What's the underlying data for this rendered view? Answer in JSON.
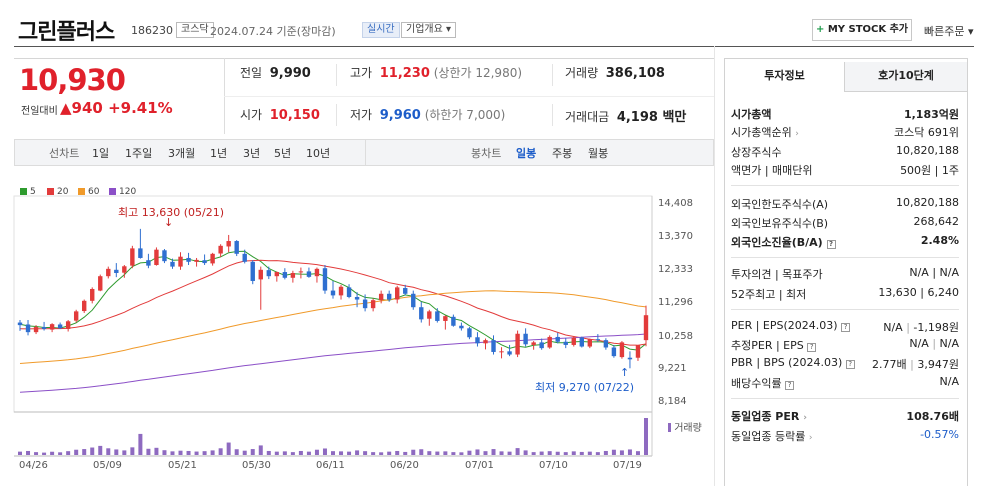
{
  "header": {
    "name": "그린플러스",
    "code": "186230",
    "market_tag": "코스닥",
    "date": "2024.07.24",
    "date_suffix": "기준(장마감)",
    "realtime_tag": "실시간",
    "company_tag": "기업개요",
    "mystock_label": "MY STOCK 추가",
    "quick_order": "빠른주문"
  },
  "price": {
    "current": "10,930",
    "change_label": "전일대비",
    "change": "▲940",
    "change_pct": "+9.41%"
  },
  "quote": {
    "prev_label": "전일",
    "prev": "9,990",
    "high_label": "고가",
    "high": "11,230",
    "upper_limit": "(상한가 12,980)",
    "volume_label": "거래량",
    "volume": "386,108",
    "open_label": "시가",
    "open": "10,150",
    "low_label": "저가",
    "low": "9,960",
    "lower_limit": "(하한가 7,000)",
    "amount_label": "거래대금",
    "amount": "4,198 백만"
  },
  "period_tabs": {
    "line_label": "선차트",
    "items": [
      "1일",
      "1주일",
      "3개월",
      "1년",
      "3년",
      "5년",
      "10년"
    ],
    "candle_label": "봉차트",
    "candle_items": [
      "일봉",
      "주봉",
      "월봉"
    ],
    "candle_active": "일봉"
  },
  "chart_data": {
    "type": "candlestick",
    "legend": [
      {
        "name": "5",
        "color": "#2e9b2e"
      },
      {
        "name": "20",
        "color": "#e23b3b"
      },
      {
        "name": "60",
        "color": "#f09a2a"
      },
      {
        "name": "120",
        "color": "#8b4fc7"
      }
    ],
    "y_ticks": [
      "14,408",
      "13,370",
      "12,333",
      "11,296",
      "10,258",
      "9,221",
      "8,184"
    ],
    "ylim": [
      8184,
      14408
    ],
    "x_ticks": [
      "04/26",
      "05/09",
      "05/21",
      "05/30",
      "06/11",
      "06/20",
      "07/01",
      "07/10",
      "07/19"
    ],
    "high_annotation": "최고 13,630 (05/21)",
    "low_annotation": "최저 9,270 (07/22)",
    "volume_label": "거래량",
    "candles": [
      [
        10700,
        10780,
        10440,
        10620
      ],
      [
        10640,
        10780,
        10300,
        10400
      ],
      [
        10400,
        10620,
        10340,
        10560
      ],
      [
        10560,
        10720,
        10450,
        10500
      ],
      [
        10480,
        10680,
        10400,
        10650
      ],
      [
        10640,
        10700,
        10500,
        10520
      ],
      [
        10500,
        10780,
        10420,
        10740
      ],
      [
        10760,
        11100,
        10700,
        11050
      ],
      [
        11060,
        11420,
        11000,
        11380
      ],
      [
        11380,
        11800,
        11300,
        11750
      ],
      [
        11700,
        12200,
        11680,
        12150
      ],
      [
        12150,
        12450,
        12080,
        12380
      ],
      [
        12350,
        12560,
        12120,
        12250
      ],
      [
        12260,
        12500,
        12100,
        12460
      ],
      [
        12480,
        13100,
        12400,
        13020
      ],
      [
        13020,
        13630,
        12700,
        12720
      ],
      [
        12650,
        12850,
        12400,
        12480
      ],
      [
        12500,
        13050,
        12480,
        12980
      ],
      [
        12960,
        13000,
        12560,
        12620
      ],
      [
        12600,
        12700,
        12380,
        12450
      ],
      [
        12450,
        12900,
        12350,
        12760
      ],
      [
        12720,
        12880,
        12500,
        12600
      ],
      [
        12600,
        12720,
        12450,
        12660
      ],
      [
        12650,
        12830,
        12500,
        12560
      ],
      [
        12550,
        12880,
        12480,
        12850
      ],
      [
        12860,
        13150,
        12750,
        13100
      ],
      [
        13080,
        13440,
        12900,
        13250
      ],
      [
        13250,
        13280,
        12780,
        12850
      ],
      [
        12850,
        12980,
        12550,
        12600
      ],
      [
        12600,
        12650,
        11900,
        12000
      ],
      [
        12050,
        12450,
        11100,
        12350
      ],
      [
        12340,
        12450,
        12060,
        12150
      ],
      [
        12150,
        12300,
        11980,
        12280
      ],
      [
        12280,
        12400,
        12050,
        12100
      ],
      [
        12100,
        12320,
        11950,
        12250
      ],
      [
        12300,
        12420,
        12080,
        12300
      ],
      [
        12300,
        12420,
        12100,
        12130
      ],
      [
        12150,
        12420,
        11950,
        12380
      ],
      [
        12400,
        12500,
        11600,
        11700
      ],
      [
        11700,
        12000,
        11450,
        11550
      ],
      [
        11550,
        11880,
        11420,
        11820
      ],
      [
        11800,
        11900,
        11460,
        11500
      ],
      [
        11500,
        11650,
        11180,
        11420
      ],
      [
        11420,
        11580,
        11050,
        11150
      ],
      [
        11150,
        11450,
        11050,
        11400
      ],
      [
        11400,
        11700,
        11300,
        11600
      ],
      [
        11600,
        11700,
        11350,
        11420
      ],
      [
        11420,
        11850,
        11300,
        11800
      ],
      [
        11780,
        11880,
        11550,
        11600
      ],
      [
        11600,
        11700,
        11100,
        11180
      ],
      [
        11180,
        11350,
        10700,
        10800
      ],
      [
        10820,
        11100,
        10600,
        11050
      ],
      [
        11050,
        11150,
        10700,
        10750
      ],
      [
        10750,
        10920,
        10480,
        10900
      ],
      [
        10880,
        10950,
        10570,
        10600
      ],
      [
        10600,
        10700,
        10450,
        10520
      ],
      [
        10520,
        10560,
        10180,
        10240
      ],
      [
        10240,
        10400,
        9950,
        10050
      ],
      [
        10050,
        10200,
        9860,
        10150
      ],
      [
        10150,
        10300,
        9700,
        9780
      ],
      [
        9780,
        9930,
        9580,
        9800
      ],
      [
        9800,
        10000,
        9650,
        9700
      ],
      [
        9700,
        10450,
        9620,
        10350
      ],
      [
        10350,
        10520,
        9950,
        10020
      ],
      [
        10000,
        10120,
        9850,
        10080
      ],
      [
        10080,
        10200,
        9850,
        9900
      ],
      [
        9920,
        10300,
        9880,
        10250
      ],
      [
        10250,
        10380,
        10050,
        10100
      ],
      [
        10100,
        10220,
        9900,
        10000
      ],
      [
        10000,
        10280,
        9950,
        10230
      ],
      [
        10230,
        10260,
        9920,
        9950
      ],
      [
        9950,
        10200,
        9900,
        10180
      ],
      [
        10180,
        10340,
        10090,
        10150
      ],
      [
        10150,
        10210,
        9850,
        9920
      ],
      [
        9920,
        10000,
        9600,
        9650
      ],
      [
        9620,
        10120,
        9570,
        10080
      ],
      [
        9600,
        9800,
        9270,
        9550
      ],
      [
        9600,
        9950,
        9500,
        9990
      ],
      [
        10150,
        11230,
        9960,
        10930
      ]
    ],
    "volumes": [
      35,
      42,
      30,
      25,
      34,
      28,
      40,
      55,
      62,
      78,
      95,
      70,
      58,
      48,
      80,
      220,
      65,
      75,
      50,
      38,
      45,
      42,
      36,
      40,
      48,
      70,
      130,
      60,
      45,
      62,
      100,
      42,
      35,
      38,
      30,
      42,
      35,
      55,
      68,
      40,
      38,
      35,
      48,
      40,
      30,
      28,
      35,
      42,
      32,
      55,
      60,
      40,
      36,
      38,
      30,
      28,
      45,
      58,
      40,
      62,
      38,
      35,
      72,
      48,
      30,
      36,
      40,
      34,
      30,
      38,
      32,
      35,
      30,
      42,
      55,
      48,
      58,
      40,
      386
    ]
  },
  "right_panel": {
    "tabs": [
      "투자정보",
      "호가10단계"
    ],
    "rows_1": [
      {
        "k": "시가총액",
        "v": "1,183억원"
      },
      {
        "k": "시가총액순위",
        "v": "코스닥 691위"
      },
      {
        "k": "상장주식수",
        "v": "10,820,188"
      },
      {
        "k": "액면가 | 매매단위",
        "v": "500원 | 1주"
      }
    ],
    "rows_2": [
      {
        "k": "외국인한도주식수(A)",
        "v": "10,820,188"
      },
      {
        "k": "외국인보유주식수(B)",
        "v": "268,642"
      },
      {
        "k": "외국인소진율(B/A)",
        "v": "2.48%"
      }
    ],
    "rows_3": [
      {
        "k": "투자의견 | 목표주가",
        "v": "N/A | N/A"
      },
      {
        "k": "52주최고 | 최저",
        "v": "13,630 | 6,240"
      }
    ],
    "rows_4": [
      {
        "k": "PER | EPS(2024.03)",
        "v1": "N/A",
        "v": "-1,198원"
      },
      {
        "k": "추정PER | EPS",
        "v1": "N/A",
        "v": "N/A"
      },
      {
        "k": "PBR | BPS (2024.03)",
        "v1": "2.77배",
        "v": "3,947원"
      },
      {
        "k": "배당수익률",
        "v": "N/A"
      }
    ],
    "rows_5": [
      {
        "k": "동일업종 PER",
        "v": "108.76배"
      },
      {
        "k": "동일업종 등락률",
        "v": "-0.57%"
      }
    ]
  }
}
